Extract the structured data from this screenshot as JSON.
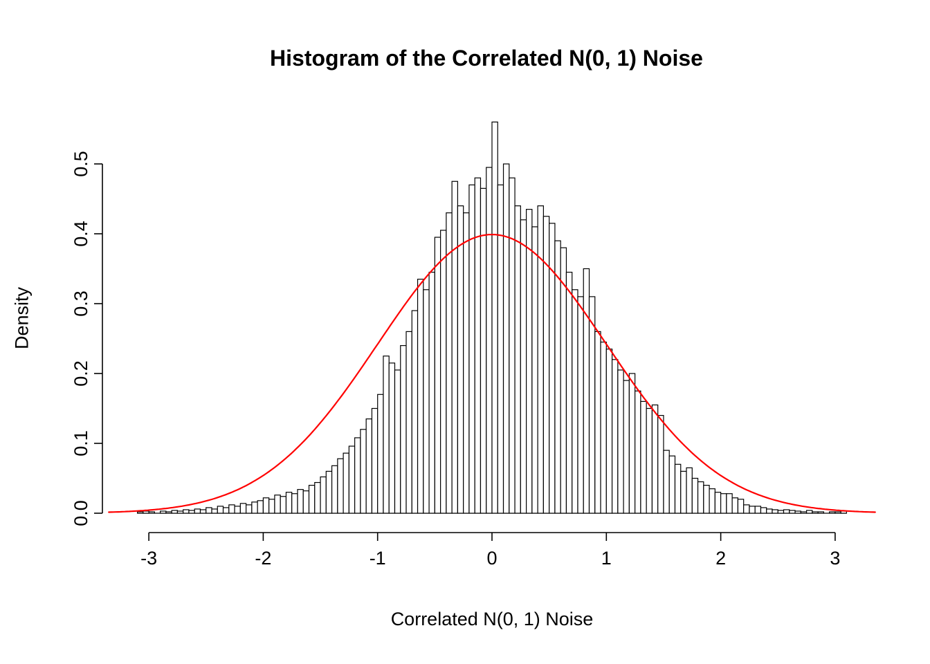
{
  "chart_data": {
    "type": "histogram",
    "title": "Histogram of the Correlated N(0, 1) Noise",
    "xlabel": "Correlated N(0, 1) Noise",
    "ylabel": "Density",
    "x_tick_values": [
      -3,
      -2,
      -1,
      0,
      1,
      2,
      3
    ],
    "x_tick_labels": [
      "-3",
      "-2",
      "-1",
      "0",
      "1",
      "2",
      "3"
    ],
    "y_tick_values": [
      0,
      0.1,
      0.2,
      0.3,
      0.4,
      0.5
    ],
    "y_tick_labels": [
      "0.0",
      "0.1",
      "0.2",
      "0.3",
      "0.4",
      "0.5"
    ],
    "xlim": [
      -3.37,
      3.37
    ],
    "ylim": [
      0,
      0.56
    ],
    "bin_width": 0.05,
    "bar_fill": "#FFFFFF",
    "bar_stroke": "#000000",
    "axis_color": "#000000",
    "background": "#FFFFFF",
    "bin_centers": [
      -3.075,
      -3.025,
      -2.975,
      -2.925,
      -2.875,
      -2.825,
      -2.775,
      -2.725,
      -2.675,
      -2.625,
      -2.575,
      -2.525,
      -2.475,
      -2.425,
      -2.375,
      -2.325,
      -2.275,
      -2.225,
      -2.175,
      -2.125,
      -2.075,
      -2.025,
      -1.975,
      -1.925,
      -1.875,
      -1.825,
      -1.775,
      -1.725,
      -1.675,
      -1.625,
      -1.575,
      -1.525,
      -1.475,
      -1.425,
      -1.375,
      -1.325,
      -1.275,
      -1.225,
      -1.175,
      -1.125,
      -1.075,
      -1.025,
      -0.975,
      -0.925,
      -0.875,
      -0.825,
      -0.775,
      -0.725,
      -0.675,
      -0.625,
      -0.575,
      -0.525,
      -0.475,
      -0.425,
      -0.375,
      -0.325,
      -0.275,
      -0.225,
      -0.175,
      -0.125,
      -0.075,
      -0.025,
      0.025,
      0.075,
      0.125,
      0.175,
      0.225,
      0.275,
      0.325,
      0.375,
      0.425,
      0.475,
      0.525,
      0.575,
      0.625,
      0.675,
      0.725,
      0.775,
      0.825,
      0.875,
      0.925,
      0.975,
      1.025,
      1.075,
      1.125,
      1.175,
      1.225,
      1.275,
      1.325,
      1.375,
      1.425,
      1.475,
      1.525,
      1.575,
      1.625,
      1.675,
      1.725,
      1.775,
      1.825,
      1.875,
      1.925,
      1.975,
      2.025,
      2.075,
      2.125,
      2.175,
      2.225,
      2.275,
      2.325,
      2.375,
      2.425,
      2.475,
      2.525,
      2.575,
      2.625,
      2.675,
      2.725,
      2.775,
      2.825,
      2.875,
      2.925,
      2.975,
      3.025,
      3.075
    ],
    "densities": [
      0.002,
      0.003,
      0.002,
      0,
      0.003,
      0.002,
      0.004,
      0.003,
      0.005,
      0.004,
      0.006,
      0.005,
      0.008,
      0.006,
      0.01,
      0.008,
      0.012,
      0.01,
      0.014,
      0.012,
      0.016,
      0.018,
      0.022,
      0.02,
      0.026,
      0.024,
      0.03,
      0.028,
      0.034,
      0.032,
      0.04,
      0.044,
      0.052,
      0.06,
      0.068,
      0.078,
      0.086,
      0.096,
      0.108,
      0.12,
      0.135,
      0.15,
      0.17,
      0.225,
      0.215,
      0.205,
      0.24,
      0.26,
      0.29,
      0.335,
      0.32,
      0.345,
      0.395,
      0.405,
      0.43,
      0.475,
      0.44,
      0.43,
      0.47,
      0.48,
      0.465,
      0.495,
      0.56,
      0.47,
      0.5,
      0.48,
      0.44,
      0.42,
      0.435,
      0.41,
      0.44,
      0.425,
      0.415,
      0.39,
      0.38,
      0.345,
      0.32,
      0.31,
      0.35,
      0.31,
      0.26,
      0.245,
      0.235,
      0.22,
      0.205,
      0.19,
      0.2,
      0.175,
      0.16,
      0.15,
      0.155,
      0.14,
      0.09,
      0.082,
      0.07,
      0.06,
      0.065,
      0.05,
      0.045,
      0.04,
      0.035,
      0.03,
      0.028,
      0.028,
      0.022,
      0.02,
      0.012,
      0.01,
      0.01,
      0.008,
      0.006,
      0.005,
      0.004,
      0.005,
      0.004,
      0.003,
      0.002,
      0.004,
      0.002,
      0.002,
      0,
      0.002,
      0.002,
      0.003
    ],
    "overlay_curve": {
      "shape": "normal",
      "mean": 0,
      "sd": 1,
      "color": "#FF0000",
      "x_range": [
        -3.35,
        3.35
      ]
    }
  }
}
